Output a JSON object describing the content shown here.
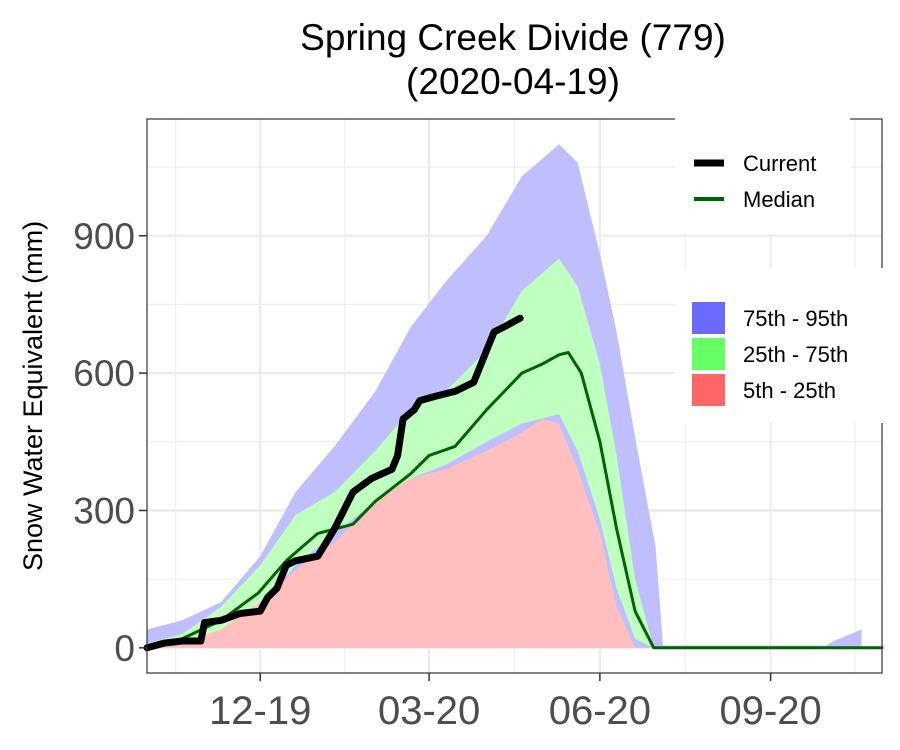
{
  "chart_data": {
    "type": "area",
    "title": "Spring Creek Divide (779)",
    "subtitle": "(2020-04-19)",
    "xlabel": "",
    "ylabel": "Snow Water Equivalent (mm)",
    "x_type": "date",
    "xlim": [
      "2019-10-01",
      "2020-10-31"
    ],
    "ylim": [
      -55,
      1155
    ],
    "yticks": [
      0,
      300,
      600,
      900
    ],
    "xticks": [
      "2019-12-01",
      "2020-03-01",
      "2020-06-01",
      "2020-09-01"
    ],
    "xtick_labels": [
      "12-19",
      "03-20",
      "06-20",
      "09-20"
    ],
    "grid": true,
    "bands": [
      {
        "name": "75th - 95th",
        "color": "#6a6aff",
        "fill_color": "#bfbfff",
        "x": [
          "2019-10-01",
          "2019-10-20",
          "2019-11-10",
          "2019-12-01",
          "2019-12-20",
          "2020-01-10",
          "2020-02-01",
          "2020-02-20",
          "2020-03-10",
          "2020-04-01",
          "2020-04-20",
          "2020-05-10",
          "2020-05-20",
          "2020-06-01",
          "2020-06-10",
          "2020-06-20",
          "2020-07-01",
          "2020-07-05",
          "2020-10-01",
          "2020-10-05",
          "2020-10-20"
        ],
        "lower": [
          0,
          0,
          0,
          0,
          0,
          0,
          0,
          0,
          0,
          0,
          0,
          0,
          0,
          0,
          0,
          0,
          0,
          0,
          0,
          0,
          0
        ],
        "upper": [
          40,
          60,
          100,
          200,
          340,
          440,
          560,
          700,
          800,
          900,
          1030,
          1100,
          1060,
          860,
          690,
          460,
          220,
          5,
          5,
          15,
          40
        ]
      },
      {
        "name": "25th - 75th",
        "color": "#66ff66",
        "fill_color": "#bfffbf",
        "x": [
          "2019-10-01",
          "2019-10-20",
          "2019-11-10",
          "2019-12-01",
          "2019-12-20",
          "2020-01-10",
          "2020-02-01",
          "2020-02-20",
          "2020-03-10",
          "2020-04-01",
          "2020-04-20",
          "2020-05-10",
          "2020-05-20",
          "2020-06-01",
          "2020-06-10",
          "2020-06-20",
          "2020-06-30"
        ],
        "lower": [
          0,
          0,
          20,
          90,
          180,
          250,
          320,
          370,
          400,
          450,
          490,
          510,
          430,
          280,
          130,
          20,
          0
        ],
        "upper": [
          10,
          30,
          90,
          180,
          290,
          340,
          430,
          520,
          560,
          650,
          780,
          850,
          790,
          620,
          420,
          150,
          0
        ]
      },
      {
        "name": "5th - 25th",
        "color": "#ff6666",
        "fill_color": "#ffbfbf",
        "x": [
          "2019-10-01",
          "2019-10-20",
          "2019-11-10",
          "2019-12-01",
          "2019-12-20",
          "2020-01-10",
          "2020-02-01",
          "2020-02-20",
          "2020-03-10",
          "2020-04-01",
          "2020-04-20",
          "2020-05-01",
          "2020-05-10",
          "2020-05-20",
          "2020-06-01",
          "2020-06-10",
          "2020-06-20"
        ],
        "lower": [
          0,
          0,
          0,
          0,
          0,
          0,
          0,
          0,
          0,
          0,
          0,
          0,
          0,
          0,
          0,
          0,
          0
        ],
        "upper": [
          0,
          10,
          40,
          100,
          170,
          230,
          320,
          370,
          390,
          430,
          470,
          500,
          490,
          390,
          250,
          90,
          0
        ]
      }
    ],
    "series": [
      {
        "name": "Median",
        "color": "#006400",
        "x": [
          "2019-10-01",
          "2019-10-20",
          "2019-11-10",
          "2019-11-30",
          "2019-12-15",
          "2020-01-01",
          "2020-01-20",
          "2020-02-01",
          "2020-02-20",
          "2020-03-01",
          "2020-03-15",
          "2020-04-01",
          "2020-04-20",
          "2020-05-01",
          "2020-05-10",
          "2020-05-15",
          "2020-05-22",
          "2020-06-01",
          "2020-06-10",
          "2020-06-20",
          "2020-06-30",
          "2020-07-10",
          "2020-10-31"
        ],
        "y": [
          0,
          20,
          60,
          120,
          190,
          250,
          270,
          320,
          380,
          420,
          440,
          520,
          600,
          620,
          640,
          645,
          600,
          450,
          260,
          80,
          0,
          0,
          0
        ]
      },
      {
        "name": "Current",
        "color": "#000000",
        "x": [
          "2019-10-01",
          "2019-10-10",
          "2019-10-20",
          "2019-10-30",
          "2019-11-01",
          "2019-11-10",
          "2019-11-20",
          "2019-12-01",
          "2019-12-05",
          "2019-12-10",
          "2019-12-15",
          "2019-12-20",
          "2020-01-01",
          "2020-01-10",
          "2020-01-15",
          "2020-01-20",
          "2020-01-30",
          "2020-02-10",
          "2020-02-13",
          "2020-02-16",
          "2020-02-22",
          "2020-02-25",
          "2020-03-05",
          "2020-03-15",
          "2020-03-25",
          "2020-04-01",
          "2020-04-05",
          "2020-04-10",
          "2020-04-19"
        ],
        "y": [
          0,
          10,
          15,
          15,
          55,
          60,
          75,
          80,
          110,
          130,
          180,
          190,
          200,
          260,
          300,
          340,
          370,
          390,
          420,
          500,
          520,
          540,
          550,
          560,
          580,
          650,
          690,
          700,
          720
        ]
      }
    ],
    "legend": {
      "placement": "right",
      "lines": [
        {
          "label": "Current",
          "color": "#000000"
        },
        {
          "label": "Median",
          "color": "#006400"
        }
      ],
      "fills": [
        {
          "label": "75th - 95th",
          "color": "#6a6aff"
        },
        {
          "label": "25th - 75th",
          "color": "#66ff66"
        },
        {
          "label": "5th - 25th",
          "color": "#ff6666"
        }
      ]
    }
  }
}
